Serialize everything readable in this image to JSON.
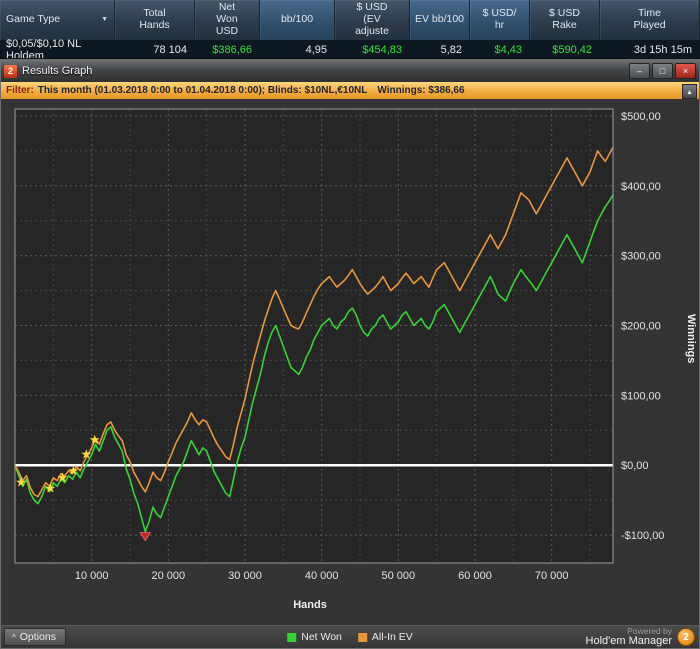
{
  "stats_table": {
    "headers": [
      {
        "key": "game-type",
        "label": "Game Type",
        "dropdown": true,
        "highlight": false
      },
      {
        "key": "total-hands",
        "label": "Total\nHands",
        "highlight": false
      },
      {
        "key": "net-won-usd",
        "label": "Net\nWon\nUSD",
        "highlight": false
      },
      {
        "key": "bb-100",
        "label": "bb/100",
        "highlight": true
      },
      {
        "key": "usd-ev-adjusted",
        "label": "$ USD\n(EV\nadjuste",
        "highlight": false
      },
      {
        "key": "ev-bb-100",
        "label": "EV bb/100",
        "highlight": true
      },
      {
        "key": "usd-hr",
        "label": "$ USD/\nhr",
        "highlight": true
      },
      {
        "key": "usd-rake",
        "label": "$ USD\nRake",
        "highlight": false
      },
      {
        "key": "time-played",
        "label": "Time\nPlayed",
        "highlight": false
      }
    ],
    "row": [
      {
        "value": "$0,05/$0,10 NL Holdem",
        "green": false
      },
      {
        "value": "78 104",
        "green": false
      },
      {
        "value": "$386,66",
        "green": true
      },
      {
        "value": "4,95",
        "green": false
      },
      {
        "value": "$454,83",
        "green": true
      },
      {
        "value": "5,82",
        "green": false
      },
      {
        "value": "$4,43",
        "green": true
      },
      {
        "value": "$590,42",
        "green": true
      },
      {
        "value": "3d 15h 15m",
        "green": false
      }
    ],
    "green_color": "#2ee42e"
  },
  "window": {
    "title": "Results Graph",
    "icon_text": "2",
    "minimize_glyph": "–",
    "maximize_glyph": "□",
    "close_glyph": "×"
  },
  "filter_bar": {
    "label": "Filter:",
    "criteria": "This month (01.03.2018 0:00 to 01.04.2018 0:00); Blinds: $10NL,€10NL",
    "winnings": "Winnings: $386,66",
    "collapse_glyph": "▴"
  },
  "options_button": {
    "chevron": "^",
    "label": "Options"
  },
  "powered_by": {
    "line1": "Powered by",
    "line2": "Hold'em Manager",
    "badge": "2"
  },
  "chart_data": {
    "type": "line",
    "title": "",
    "xlabel": "Hands",
    "ylabel": "Winnings",
    "xlim": [
      0,
      78000
    ],
    "ylim": [
      -140,
      510
    ],
    "x_step": 500,
    "x_ticks": [
      10000,
      20000,
      30000,
      40000,
      50000,
      60000,
      70000
    ],
    "x_tick_labels": [
      "10 000",
      "20 000",
      "30 000",
      "40 000",
      "50 000",
      "60 000",
      "70 000"
    ],
    "y_ticks": [
      500,
      400,
      300,
      200,
      100,
      0,
      -100
    ],
    "y_tick_labels": [
      "$500,00",
      "$400,00",
      "$300,00",
      "$200,00",
      "$100,00",
      "$0,00",
      "-$100,00"
    ],
    "grid": {
      "on": true,
      "x_step": 5000,
      "x_major": 10000,
      "y_step": 50,
      "y_major": 100
    },
    "zero_line": 0,
    "legend_position": "bottom",
    "series": [
      {
        "name": "Net Won",
        "color": "#35d435",
        "values": [
          0,
          -15,
          -30,
          -20,
          -40,
          -50,
          -55,
          -45,
          -30,
          -38,
          -25,
          -30,
          -20,
          -25,
          -15,
          -20,
          -10,
          -18,
          -5,
          5,
          15,
          30,
          20,
          35,
          50,
          55,
          40,
          30,
          20,
          -5,
          -20,
          -40,
          -55,
          -75,
          -95,
          -80,
          -60,
          -70,
          -75,
          -60,
          -45,
          -30,
          -15,
          -5,
          5,
          20,
          35,
          25,
          15,
          25,
          20,
          5,
          -10,
          -20,
          -30,
          -40,
          -45,
          -20,
          5,
          25,
          40,
          65,
          90,
          110,
          130,
          155,
          175,
          190,
          200,
          185,
          170,
          155,
          140,
          135,
          130,
          140,
          155,
          165,
          180,
          190,
          200,
          205,
          210,
          200,
          195,
          205,
          210,
          220,
          225,
          215,
          200,
          190,
          185,
          195,
          200,
          210,
          215,
          205,
          195,
          200,
          205,
          215,
          220,
          210,
          200,
          205,
          210,
          200,
          195,
          205,
          220,
          225,
          230,
          220,
          210,
          200,
          190,
          200,
          210,
          220,
          230,
          240,
          250,
          260,
          270,
          258,
          245,
          240,
          235,
          248,
          260,
          270,
          280,
          272,
          265,
          258,
          250,
          260,
          270,
          280,
          290,
          300,
          310,
          320,
          330,
          320,
          310,
          300,
          290,
          305,
          320,
          335,
          350,
          360,
          370,
          378,
          387
        ]
      },
      {
        "name": "All-In EV",
        "color": "#e8963c",
        "values": [
          0,
          -10,
          -22,
          -15,
          -32,
          -42,
          -45,
          -35,
          -25,
          -30,
          -18,
          -22,
          -12,
          -15,
          -8,
          -12,
          -2,
          -8,
          5,
          15,
          25,
          38,
          30,
          45,
          58,
          62,
          50,
          42,
          35,
          15,
          5,
          -10,
          -20,
          -30,
          -38,
          -25,
          -10,
          -18,
          -22,
          -10,
          5,
          18,
          32,
          42,
          52,
          62,
          75,
          65,
          58,
          65,
          62,
          50,
          38,
          28,
          20,
          12,
          8,
          30,
          55,
          75,
          95,
          120,
          145,
          165,
          185,
          205,
          222,
          238,
          250,
          238,
          225,
          212,
          200,
          197,
          195,
          205,
          218,
          230,
          242,
          252,
          260,
          265,
          270,
          262,
          255,
          260,
          265,
          272,
          280,
          270,
          260,
          252,
          245,
          250,
          255,
          262,
          270,
          260,
          250,
          255,
          260,
          268,
          275,
          268,
          260,
          265,
          270,
          262,
          255,
          268,
          280,
          285,
          290,
          280,
          270,
          260,
          250,
          260,
          270,
          280,
          290,
          300,
          310,
          320,
          330,
          320,
          310,
          320,
          330,
          345,
          360,
          375,
          390,
          385,
          380,
          370,
          360,
          370,
          380,
          390,
          400,
          410,
          420,
          430,
          440,
          430,
          420,
          410,
          400,
          410,
          420,
          435,
          450,
          442,
          435,
          445,
          455
        ]
      }
    ],
    "markers": {
      "stars": [
        [
          800,
          -25
        ],
        [
          4600,
          -33
        ],
        [
          6200,
          -18
        ],
        [
          7600,
          -8
        ],
        [
          9300,
          15
        ],
        [
          10400,
          36
        ]
      ],
      "star_color": "#ffdf3c",
      "triangle": [
        17000,
        -108
      ],
      "triangle_color": "#c22222"
    }
  }
}
